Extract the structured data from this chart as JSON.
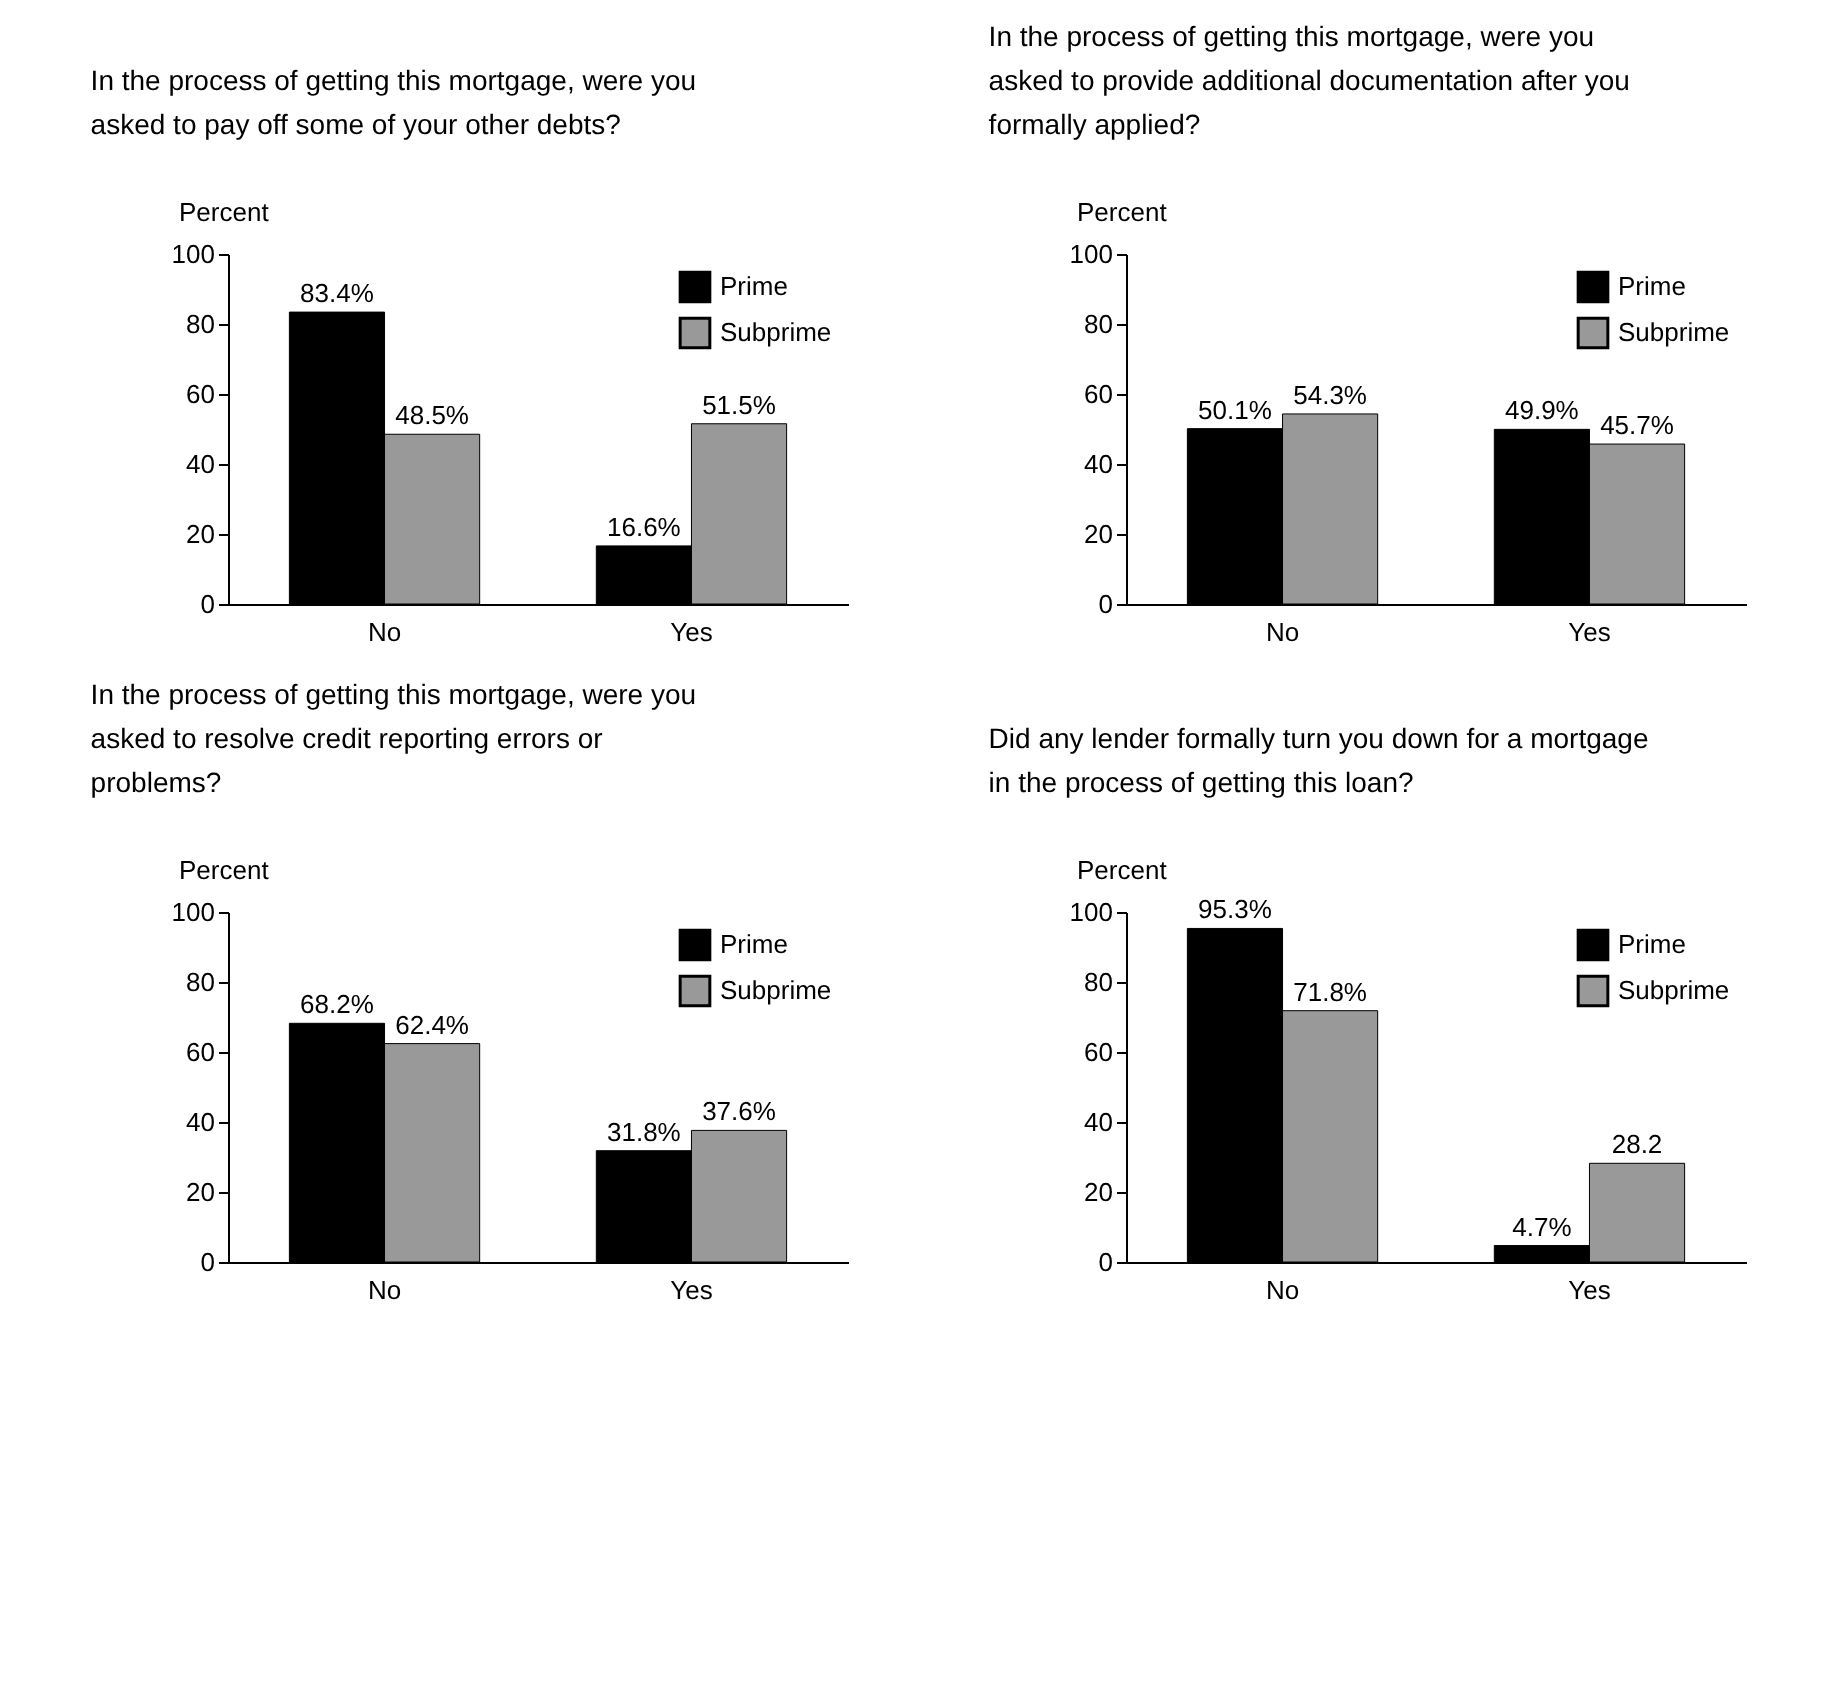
{
  "chart_data": [
    {
      "type": "bar",
      "title": "In the process of getting this mortgage, were you asked to pay off some of your other debts?",
      "ylabel": "Percent",
      "categories": [
        "No",
        "Yes"
      ],
      "ylim": [
        0,
        100
      ],
      "yticks": [
        0,
        20,
        40,
        60,
        80,
        100
      ],
      "grid": false,
      "legend": "top right",
      "series": [
        {
          "name": "Prime",
          "color": "#000000",
          "values": [
            83.4,
            16.6
          ],
          "value_labels": [
            "83.4%",
            "16.6%"
          ]
        },
        {
          "name": "Subprime",
          "color": "#999999",
          "values": [
            48.5,
            51.5
          ],
          "value_labels": [
            "48.5%",
            "51.5%"
          ]
        }
      ]
    },
    {
      "type": "bar",
      "title": "In the process of getting this mortgage, were you asked to provide additional documentation after you formally applied?",
      "ylabel": "Percent",
      "categories": [
        "No",
        "Yes"
      ],
      "ylim": [
        0,
        100
      ],
      "yticks": [
        0,
        20,
        40,
        60,
        80,
        100
      ],
      "grid": false,
      "legend": "top right",
      "series": [
        {
          "name": "Prime",
          "color": "#000000",
          "values": [
            50.1,
            49.9
          ],
          "value_labels": [
            "50.1%",
            "49.9%"
          ]
        },
        {
          "name": "Subprime",
          "color": "#999999",
          "values": [
            54.3,
            45.7
          ],
          "value_labels": [
            "54.3%",
            "45.7%"
          ]
        }
      ]
    },
    {
      "type": "bar",
      "title": "In the process of getting this mortgage, were you asked to resolve credit reporting errors or problems?",
      "ylabel": "Percent",
      "categories": [
        "No",
        "Yes"
      ],
      "ylim": [
        0,
        100
      ],
      "yticks": [
        0,
        20,
        40,
        60,
        80,
        100
      ],
      "grid": false,
      "legend": "top right",
      "series": [
        {
          "name": "Prime",
          "color": "#000000",
          "values": [
            68.2,
            31.8
          ],
          "value_labels": [
            "68.2%",
            "31.8%"
          ]
        },
        {
          "name": "Subprime",
          "color": "#999999",
          "values": [
            62.4,
            37.6
          ],
          "value_labels": [
            "62.4%",
            "37.6%"
          ]
        }
      ]
    },
    {
      "type": "bar",
      "title": "Did any lender formally turn you down for a mortgage in the process of getting this loan?",
      "ylabel": "Percent",
      "categories": [
        "No",
        "Yes"
      ],
      "ylim": [
        0,
        100
      ],
      "yticks": [
        0,
        20,
        40,
        60,
        80,
        100
      ],
      "grid": false,
      "legend": "top right",
      "series": [
        {
          "name": "Prime",
          "color": "#000000",
          "values": [
            95.3,
            4.7
          ],
          "value_labels": [
            "95.3%",
            "4.7%"
          ]
        },
        {
          "name": "Subprime",
          "color": "#999999",
          "values": [
            71.8,
            28.2
          ],
          "value_labels": [
            "71.8%",
            "28.2"
          ]
        }
      ]
    }
  ]
}
